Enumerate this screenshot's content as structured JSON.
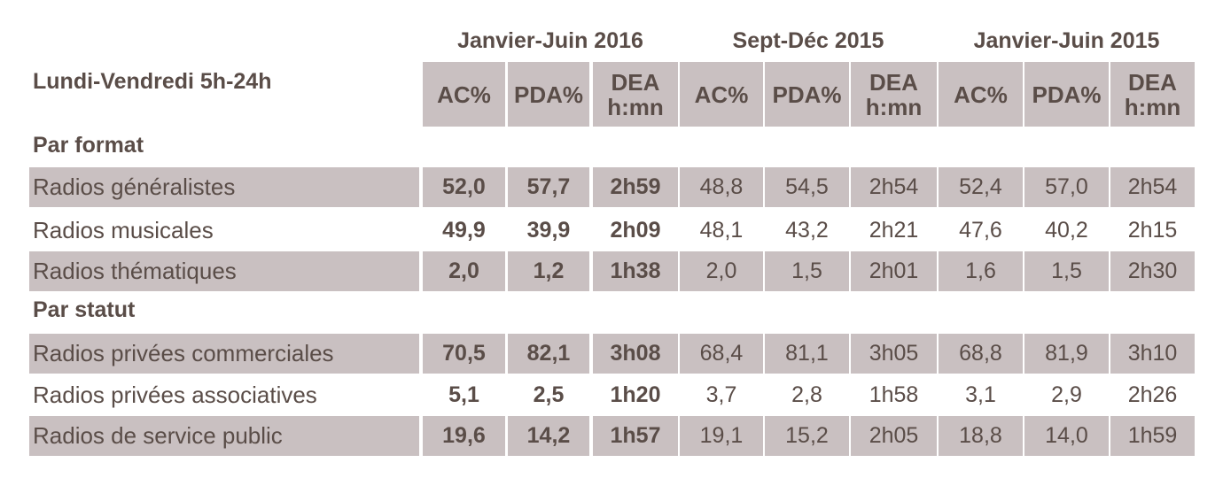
{
  "header": {
    "row_label": "Lundi-Vendredi 5h-24h",
    "periods": [
      "Janvier-Juin 2016",
      "Sept-Déc 2015",
      "Janvier-Juin 2015"
    ],
    "columns": [
      "AC%",
      "PDA%",
      "DEA h:mn"
    ],
    "dea_line1": "DEA",
    "dea_line2": "h:mn"
  },
  "sections": [
    {
      "title": "Par format",
      "rows": [
        {
          "label": "Radios généralistes",
          "values": [
            "52,0",
            "57,7",
            "2h59",
            "48,8",
            "54,5",
            "2h54",
            "52,4",
            "57,0",
            "2h54"
          ],
          "shaded": true
        },
        {
          "label": "Radios musicales",
          "values": [
            "49,9",
            "39,9",
            "2h09",
            "48,1",
            "43,2",
            "2h21",
            "47,6",
            "40,2",
            "2h15"
          ],
          "shaded": false
        },
        {
          "label": "Radios thématiques",
          "values": [
            "2,0",
            "1,2",
            "1h38",
            "2,0",
            "1,5",
            "2h01",
            "1,6",
            "1,5",
            "2h30"
          ],
          "shaded": true
        }
      ]
    },
    {
      "title": "Par statut",
      "rows": [
        {
          "label": "Radios privées commerciales",
          "values": [
            "70,5",
            "82,1",
            "3h08",
            "68,4",
            "81,1",
            "3h05",
            "68,8",
            "81,9",
            "3h10"
          ],
          "shaded": true
        },
        {
          "label": "Radios privées associatives",
          "values": [
            "5,1",
            "2,5",
            "1h20",
            "3,7",
            "2,8",
            "1h58",
            "3,1",
            "2,9",
            "2h26"
          ],
          "shaded": false
        },
        {
          "label": "Radios de service public",
          "values": [
            "19,6",
            "14,2",
            "1h57",
            "19,1",
            "15,2",
            "2h05",
            "18,8",
            "14,0",
            "1h59"
          ],
          "shaded": true
        }
      ]
    }
  ],
  "colors": {
    "shade": "#c9c0c1",
    "text": "#5a4d48"
  }
}
